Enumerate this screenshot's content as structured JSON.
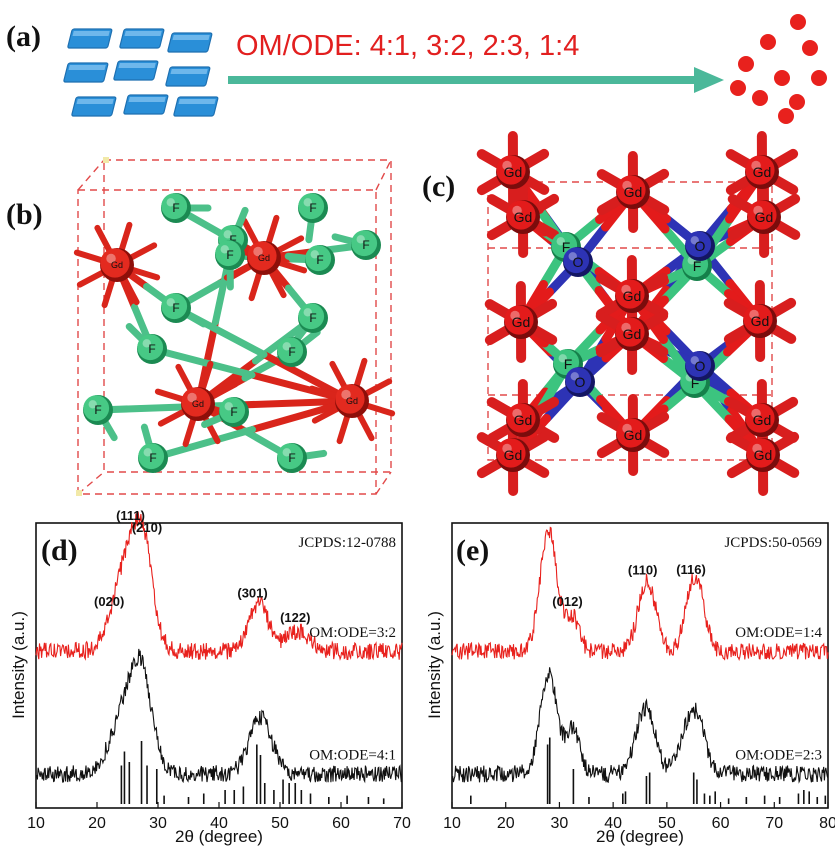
{
  "panel_a": {
    "label": "(a)",
    "ratio_text": "OM/ODE: 4:1,    3:2,    2:3,    1:4",
    "colors": {
      "rod": "#2a8fd8",
      "arrow": "#4bb89a",
      "dot": "#e8211d"
    }
  },
  "panel_b": {
    "label": "(b)",
    "atoms": [
      {
        "el": "F"
      },
      {
        "el": "F"
      },
      {
        "el": "F"
      },
      {
        "el": "F"
      },
      {
        "el": "F"
      },
      {
        "el": "F"
      },
      {
        "el": "F"
      },
      {
        "el": "F"
      },
      {
        "el": "F"
      },
      {
        "el": "F"
      },
      {
        "el": "F"
      },
      {
        "el": "F"
      },
      {
        "el": "F"
      },
      {
        "el": "F"
      },
      {
        "el": "Gd"
      },
      {
        "el": "Gd"
      },
      {
        "el": "Gd"
      },
      {
        "el": "Gd"
      }
    ]
  },
  "panel_c": {
    "label": "(c)",
    "atom_labels": {
      "Gd": "Gd",
      "F": "F",
      "O": "O"
    },
    "colors": {
      "Gd": "#e31b1b",
      "F": "#3cc47f",
      "O": "#2d33b5"
    }
  },
  "panel_d": {
    "label": "(d)"
  },
  "panel_e": {
    "label": "(e)"
  },
  "chart_data": [
    {
      "type": "line",
      "panel": "(d)",
      "xlabel": "2θ (degree)",
      "ylabel": "Intensity (a.u.)",
      "xlim": [
        10,
        70
      ],
      "xticks": [
        10,
        20,
        30,
        40,
        50,
        60,
        70
      ],
      "reference": "JCPDS:12-0788",
      "series": [
        {
          "name": "OM:ODE=3:2",
          "color": "#e8211d",
          "baseline": 0.55,
          "peaks": [
            [
              25.5,
              0.36,
              2.4
            ],
            [
              27.8,
              0.2,
              1.4
            ],
            [
              46.5,
              0.17,
              1.6
            ],
            [
              53.0,
              0.07,
              2.0
            ]
          ]
        },
        {
          "name": "OM:ODE=4:1",
          "color": "#111111",
          "baseline": 0.12,
          "peaks": [
            [
              25.5,
              0.28,
              2.6
            ],
            [
              27.5,
              0.18,
              1.5
            ],
            [
              46.8,
              0.2,
              1.8
            ]
          ]
        }
      ],
      "peak_labels": [
        {
          "text": "(020)",
          "x": 22.0
        },
        {
          "text": "(111)",
          "x": 25.5
        },
        {
          "text": "(210)",
          "x": 28.2
        },
        {
          "text": "(301)",
          "x": 45.5
        },
        {
          "text": "(122)",
          "x": 52.5
        }
      ],
      "ref_sticks": [
        [
          24.0,
          0.55
        ],
        [
          24.5,
          0.75
        ],
        [
          25.3,
          0.6
        ],
        [
          27.3,
          0.9
        ],
        [
          28.2,
          0.55
        ],
        [
          29.8,
          0.5
        ],
        [
          31.0,
          0.12
        ],
        [
          35.0,
          0.1
        ],
        [
          37.5,
          0.15
        ],
        [
          41.0,
          0.2
        ],
        [
          42.5,
          0.2
        ],
        [
          44.0,
          0.25
        ],
        [
          46.2,
          0.85
        ],
        [
          46.8,
          0.7
        ],
        [
          47.5,
          0.3
        ],
        [
          49.0,
          0.2
        ],
        [
          50.5,
          0.35
        ],
        [
          51.5,
          0.3
        ],
        [
          52.5,
          0.3
        ],
        [
          53.5,
          0.2
        ],
        [
          55.0,
          0.15
        ],
        [
          58.0,
          0.1
        ],
        [
          61.0,
          0.12
        ],
        [
          64.5,
          0.1
        ],
        [
          67.0,
          0.08
        ]
      ]
    },
    {
      "type": "line",
      "panel": "(e)",
      "xlabel": "2θ (degree)",
      "ylabel": "Intensity (a.u.)",
      "xlim": [
        10,
        80
      ],
      "xticks": [
        10,
        20,
        30,
        40,
        50,
        60,
        70,
        80
      ],
      "reference": "JCPDS:50-0569",
      "series": [
        {
          "name": "OM:ODE=1:4",
          "color": "#e8211d",
          "baseline": 0.55,
          "peaks": [
            [
              28.0,
              0.42,
              1.6
            ],
            [
              32.5,
              0.12,
              1.2
            ],
            [
              46.3,
              0.25,
              1.6
            ],
            [
              54.8,
              0.22,
              1.5
            ],
            [
              56.5,
              0.08,
              1.2
            ]
          ]
        },
        {
          "name": "OM:ODE=2:3",
          "color": "#111111",
          "baseline": 0.12,
          "peaks": [
            [
              28.0,
              0.35,
              1.6
            ],
            [
              32.5,
              0.16,
              1.2
            ],
            [
              46.0,
              0.23,
              1.8
            ],
            [
              54.5,
              0.2,
              1.8
            ],
            [
              56.5,
              0.06,
              1.3
            ]
          ]
        }
      ],
      "peak_labels": [
        {
          "text": "(012)",
          "x": 31.5
        },
        {
          "text": "(110)",
          "x": 45.5
        },
        {
          "text": "(116)",
          "x": 54.5
        }
      ],
      "ref_sticks": [
        [
          13.5,
          0.12
        ],
        [
          27.8,
          0.85
        ],
        [
          28.2,
          0.95
        ],
        [
          32.6,
          0.5
        ],
        [
          35.5,
          0.1
        ],
        [
          41.8,
          0.15
        ],
        [
          42.3,
          0.18
        ],
        [
          46.2,
          0.4
        ],
        [
          46.8,
          0.45
        ],
        [
          55.0,
          0.45
        ],
        [
          55.6,
          0.35
        ],
        [
          57.0,
          0.15
        ],
        [
          58.0,
          0.12
        ],
        [
          59.0,
          0.18
        ],
        [
          61.5,
          0.08
        ],
        [
          64.8,
          0.1
        ],
        [
          68.2,
          0.12
        ],
        [
          71.0,
          0.1
        ],
        [
          74.5,
          0.15
        ],
        [
          75.5,
          0.2
        ],
        [
          76.5,
          0.18
        ],
        [
          78.0,
          0.1
        ],
        [
          79.5,
          0.12
        ]
      ]
    }
  ]
}
